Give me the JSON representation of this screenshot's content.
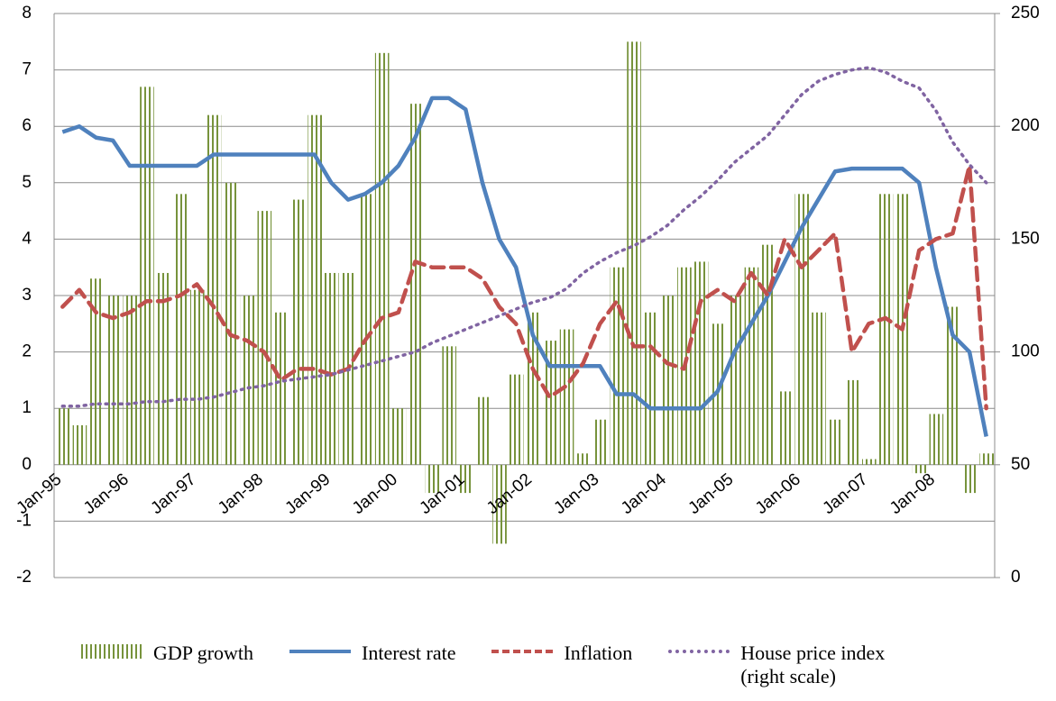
{
  "chart_data": {
    "type": "bar",
    "categories": [
      "Jan-95",
      null,
      null,
      null,
      "Jan-96",
      null,
      null,
      null,
      "Jan-97",
      null,
      null,
      null,
      "Jan-98",
      null,
      null,
      null,
      "Jan-99",
      null,
      null,
      null,
      "Jan-00",
      null,
      null,
      null,
      "Jan-01",
      null,
      null,
      null,
      "Jan-02",
      null,
      null,
      null,
      "Jan-03",
      null,
      null,
      null,
      "Jan-04",
      null,
      null,
      null,
      "Jan-05",
      null,
      null,
      null,
      "Jan-06",
      null,
      null,
      null,
      "Jan-07",
      null,
      null,
      null,
      "Jan-08",
      null,
      null,
      null
    ],
    "series": [
      {
        "name": "GDP growth",
        "type": "bar",
        "color": "#77933c",
        "values": [
          1.0,
          0.7,
          3.3,
          3.0,
          3.0,
          6.7,
          3.4,
          4.8,
          3.1,
          6.2,
          5.0,
          3.0,
          4.5,
          2.7,
          4.7,
          6.2,
          3.4,
          3.4,
          4.8,
          7.3,
          1.0,
          6.4,
          -0.5,
          2.1,
          -0.5,
          1.2,
          -1.4,
          1.6,
          2.7,
          2.2,
          2.4,
          0.2,
          0.8,
          3.5,
          7.5,
          2.7,
          3.0,
          3.5,
          3.6,
          2.5,
          3.0,
          3.5,
          3.9,
          1.3,
          4.8,
          2.7,
          0.8,
          1.5,
          0.1,
          4.8,
          4.8,
          -0.15,
          0.9,
          2.8,
          -0.5,
          0.2
        ]
      },
      {
        "name": "Interest rate",
        "type": "line",
        "color": "#4f81bd",
        "values": [
          5.9,
          6.0,
          5.8,
          5.75,
          5.3,
          5.3,
          5.3,
          5.3,
          5.3,
          5.5,
          5.5,
          5.5,
          5.5,
          5.5,
          5.5,
          5.5,
          5.0,
          4.7,
          4.8,
          5.0,
          5.3,
          5.8,
          6.5,
          6.5,
          6.3,
          5.0,
          4.0,
          3.5,
          2.3,
          1.75,
          1.75,
          1.75,
          1.75,
          1.25,
          1.25,
          1.0,
          1.0,
          1.0,
          1.0,
          1.3,
          2.0,
          2.5,
          3.0,
          3.6,
          4.2,
          4.7,
          5.2,
          5.25,
          5.25,
          5.25,
          5.25,
          5.0,
          3.5,
          2.3,
          2.0,
          0.5
        ]
      },
      {
        "name": "Inflation",
        "type": "line",
        "color": "#c0504d",
        "values": [
          2.8,
          3.1,
          2.7,
          2.6,
          2.7,
          2.9,
          2.9,
          3.0,
          3.2,
          2.8,
          2.3,
          2.2,
          2.0,
          1.5,
          1.7,
          1.7,
          1.6,
          1.7,
          2.2,
          2.6,
          2.7,
          3.6,
          3.5,
          3.5,
          3.5,
          3.3,
          2.8,
          2.5,
          1.7,
          1.2,
          1.4,
          1.8,
          2.5,
          2.9,
          2.1,
          2.1,
          1.8,
          1.7,
          2.9,
          3.1,
          2.9,
          3.4,
          3.0,
          4.0,
          3.5,
          3.8,
          4.1,
          2.0,
          2.5,
          2.6,
          2.4,
          3.8,
          4.0,
          4.1,
          5.3,
          1.0
        ]
      },
      {
        "name": "House price index (right scale)",
        "type": "line",
        "axis": "y2",
        "color": "#8064a2",
        "values": [
          76,
          76,
          77,
          77,
          77,
          78,
          78,
          79,
          79,
          80,
          82,
          84,
          85,
          87,
          88,
          89,
          90,
          92,
          94,
          96,
          98,
          100,
          104,
          107,
          110,
          113,
          116,
          119,
          122,
          124,
          128,
          135,
          140,
          144,
          147,
          151,
          156,
          163,
          169,
          176,
          184,
          190,
          196,
          205,
          214,
          220,
          223,
          225,
          226,
          224,
          220,
          217,
          207,
          193,
          183,
          175
        ]
      }
    ],
    "ylim": [
      -2,
      8
    ],
    "yticks": [
      -2,
      -1,
      0,
      1,
      2,
      3,
      4,
      5,
      6,
      7,
      8
    ],
    "y2lim": [
      0,
      250
    ],
    "y2ticks": [
      0,
      50,
      100,
      150,
      200,
      250
    ],
    "grid": true,
    "legend": "bottom"
  }
}
